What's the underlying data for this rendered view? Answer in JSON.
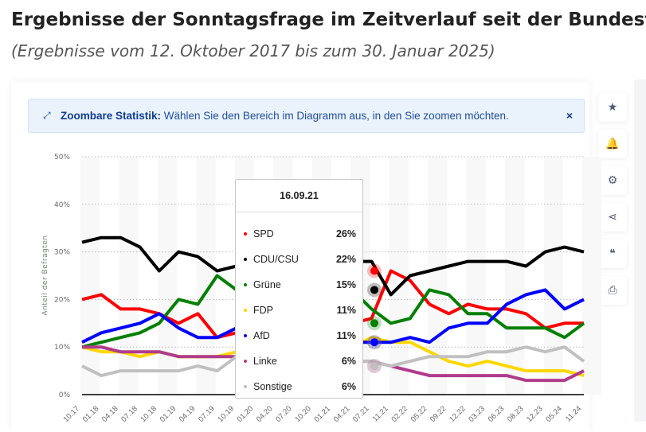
{
  "header": {
    "title": "Ergebnisse der Sonntagsfrage im Zeitverlauf seit der Bundesta",
    "subtitle": "(Ergebnisse vom 12. Oktober 2017 bis zum 30. Januar 2025)"
  },
  "banner": {
    "icon": "expand-icon",
    "bold": "Zoombare Statistik:",
    "text": " Wählen Sie den Bereich im Diagramm aus, in den Sie zoomen möchten.",
    "close": "×"
  },
  "sidebar": [
    {
      "icon": "star-icon",
      "glyph": "★"
    },
    {
      "icon": "bell-icon",
      "glyph": "🔔"
    },
    {
      "icon": "gear-icon",
      "glyph": "⚙"
    },
    {
      "icon": "share-icon",
      "glyph": "⋖"
    },
    {
      "icon": "quote-icon",
      "glyph": "❝"
    },
    {
      "icon": "print-icon",
      "glyph": "⎙"
    }
  ],
  "chart_data": {
    "type": "line",
    "ylabel": "Anteil der Befragten",
    "ylim": [
      0,
      50
    ],
    "yticks": [
      "0%",
      "10%",
      "20%",
      "30%",
      "40%",
      "50%"
    ],
    "grid": true,
    "x": [
      "10.17",
      "01.18",
      "04.18",
      "07.18",
      "10.18",
      "01.19",
      "04.19",
      "07.19",
      "10.19",
      "01.20",
      "04.20",
      "07.20",
      "10.20",
      "01.21",
      "04.21",
      "07.21",
      "11.21",
      "02.22",
      "05.22",
      "09.22",
      "12.22",
      "03.23",
      "06.23",
      "08.23",
      "12.23",
      "05.24",
      "11.24"
    ],
    "series": [
      {
        "name": "SPD",
        "color": "#ff0000",
        "values": [
          20,
          21,
          18,
          18,
          17,
          15,
          17,
          12,
          13,
          14,
          15,
          15,
          15,
          15,
          15,
          16,
          26,
          24,
          19,
          17,
          19,
          18,
          18,
          17,
          14,
          15,
          15
        ]
      },
      {
        "name": "CDU/CSU",
        "color": "#000000",
        "values": [
          32,
          33,
          33,
          31,
          26,
          30,
          29,
          26,
          27,
          28,
          38,
          38,
          36,
          35,
          28,
          28,
          21,
          25,
          26,
          27,
          28,
          28,
          28,
          27,
          30,
          31,
          30
        ]
      },
      {
        "name": "Grüne",
        "color": "#008000",
        "values": [
          10,
          11,
          12,
          13,
          15,
          20,
          19,
          25,
          22,
          22,
          17,
          17,
          18,
          20,
          22,
          18,
          15,
          16,
          22,
          21,
          17,
          17,
          14,
          14,
          14,
          12,
          15
        ]
      },
      {
        "name": "FDP",
        "color": "#ffd700",
        "values": [
          10,
          9,
          9,
          8,
          9,
          8,
          8,
          8,
          9,
          9,
          6,
          6,
          6,
          8,
          10,
          12,
          11,
          11,
          9,
          7,
          6,
          7,
          6,
          5,
          5,
          5,
          4
        ]
      },
      {
        "name": "AfD",
        "color": "#0000ff",
        "values": [
          11,
          13,
          14,
          15,
          17,
          14,
          12,
          12,
          14,
          14,
          10,
          10,
          11,
          11,
          11,
          11,
          11,
          12,
          11,
          14,
          15,
          15,
          19,
          21,
          22,
          18,
          20
        ]
      },
      {
        "name": "Linke",
        "color": "#b03b8c",
        "values": [
          10,
          10,
          9,
          9,
          9,
          8,
          8,
          8,
          8,
          9,
          8,
          7,
          7,
          7,
          7,
          7,
          6,
          5,
          4,
          4,
          4,
          4,
          4,
          3,
          3,
          3,
          5
        ]
      },
      {
        "name": "Sonstige",
        "color": "#c0c0c0",
        "values": [
          6,
          4,
          5,
          5,
          5,
          5,
          6,
          5,
          8,
          7,
          6,
          6,
          7,
          7,
          7,
          7,
          6,
          7,
          8,
          8,
          8,
          9,
          9,
          10,
          9,
          10,
          7
        ]
      }
    ],
    "tooltip": {
      "date": "16.09.21",
      "rows": [
        {
          "label": "SPD",
          "value": "26%",
          "color": "#ff0000"
        },
        {
          "label": "CDU/CSU",
          "value": "22%",
          "color": "#000000"
        },
        {
          "label": "Grüne",
          "value": "15%",
          "color": "#008000"
        },
        {
          "label": "FDP",
          "value": "11%",
          "color": "#ffd700"
        },
        {
          "label": "AfD",
          "value": "11%",
          "color": "#0000ff"
        },
        {
          "label": "Linke",
          "value": "6%",
          "color": "#b03b8c"
        },
        {
          "label": "Sonstige",
          "value": "6%",
          "color": "#c0c0c0"
        }
      ]
    }
  }
}
